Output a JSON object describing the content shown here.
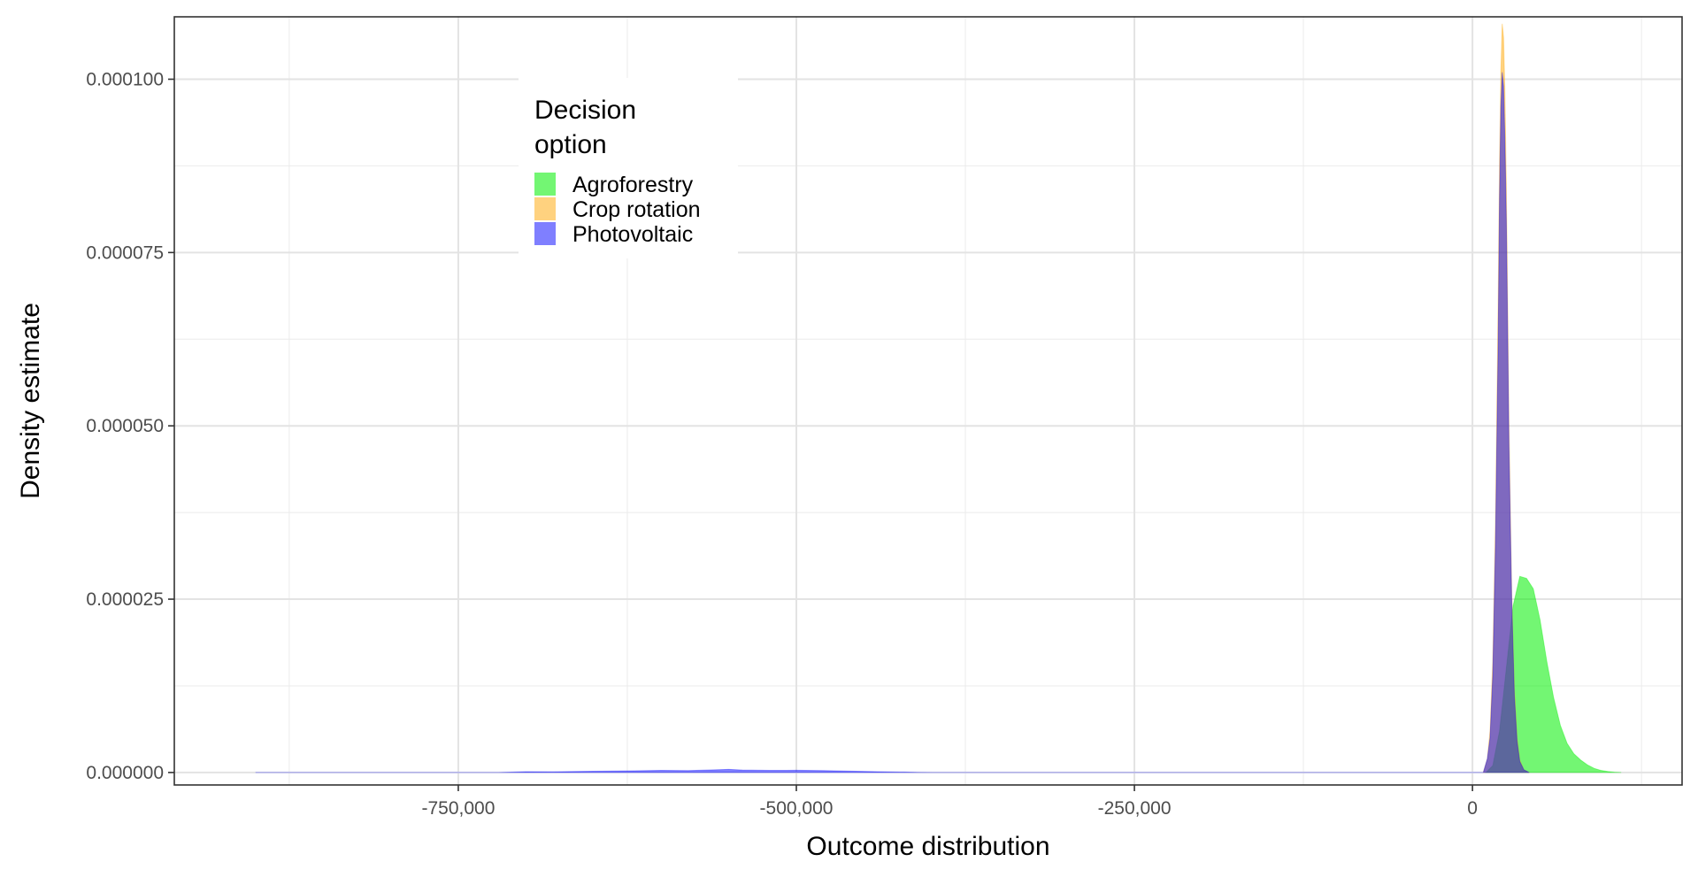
{
  "chart_data": {
    "type": "area",
    "title": "",
    "xlabel": "Outcome distribution",
    "ylabel": "Density estimate",
    "xlim": [
      -960000,
      155000
    ],
    "ylim": [
      -1.8e-06,
      0.000109
    ],
    "x_ticks": [
      -750000,
      -500000,
      -250000,
      0
    ],
    "x_tick_labels": [
      "-750,000",
      "-500,000",
      "-250,000",
      "0"
    ],
    "y_ticks": [
      0,
      2.5e-05,
      5e-05,
      7.5e-05,
      0.0001
    ],
    "y_tick_labels": [
      "0.000000",
      "0.000025",
      "0.000050",
      "0.000075",
      "0.000100"
    ],
    "grid": true,
    "legend": {
      "title_lines": [
        "Decision",
        "option"
      ],
      "placement": "top-left inside",
      "items": [
        "Agroforestry",
        "Crop rotation",
        "Photovoltaic"
      ]
    },
    "series": [
      {
        "name": "Agroforestry",
        "color": "#00ee00",
        "opacity": 0.55,
        "x": [
          10000,
          15000,
          20000,
          25000,
          30000,
          35000,
          40000,
          45000,
          50000,
          55000,
          60000,
          65000,
          70000,
          75000,
          80000,
          85000,
          90000,
          95000,
          100000,
          105000,
          110000
        ],
        "y": [
          0,
          1e-06,
          6e-06,
          1.5e-05,
          2.4e-05,
          2.83e-05,
          2.8e-05,
          2.65e-05,
          2.2e-05,
          1.6e-05,
          1.08e-05,
          6.8e-06,
          4.2e-06,
          2.7e-06,
          1.8e-06,
          1.1e-06,
          6e-07,
          3e-07,
          1.5e-07,
          5e-08,
          0
        ]
      },
      {
        "name": "Crop rotation",
        "color": "#ffa500",
        "opacity": 0.5,
        "x": [
          8000,
          11000,
          13000,
          15000,
          17000,
          19000,
          20000,
          21000,
          22000,
          23000,
          24000,
          25000,
          26000,
          27000,
          29000,
          31000,
          33000,
          35000,
          38000,
          42000
        ],
        "y": [
          0,
          2e-06,
          6e-06,
          1.6e-05,
          3.6e-05,
          6.8e-05,
          8.8e-05,
          0.000101,
          0.000108,
          0.000106,
          9.8e-05,
          8.5e-05,
          6.8e-05,
          5e-05,
          2.6e-05,
          1.2e-05,
          5e-06,
          1.8e-06,
          4e-07,
          0
        ]
      },
      {
        "name": "Photovoltaic",
        "color": "#0000ff",
        "opacity": 0.5,
        "x": [
          -900000,
          -720000,
          -700000,
          -680000,
          -650000,
          -620000,
          -600000,
          -580000,
          -560000,
          -550000,
          -540000,
          -520000,
          -500000,
          -480000,
          -460000,
          -440000,
          -420000,
          -410000,
          -400000,
          8000,
          11000,
          13000,
          15000,
          17000,
          19000,
          20000,
          21000,
          22000,
          23000,
          24000,
          25000,
          26000,
          27000,
          29000,
          31000,
          33000,
          35000,
          38000,
          42000
        ],
        "y": [
          0,
          0,
          1.2e-07,
          1e-07,
          1.8e-07,
          2.5e-07,
          3e-07,
          2.8e-07,
          3.8e-07,
          4.5e-07,
          3.5e-07,
          3e-07,
          3.2e-07,
          2.8e-07,
          2e-07,
          1.2e-07,
          6e-08,
          2e-08,
          0,
          0,
          2e-06,
          5e-06,
          1.4e-05,
          3.3e-05,
          6.2e-05,
          8.3e-05,
          9.6e-05,
          0.000101,
          9.9e-05,
          9.1e-05,
          8e-05,
          6.4e-05,
          4.7e-05,
          2.5e-05,
          1.1e-05,
          4.5e-06,
          1.6e-06,
          4e-07,
          0
        ]
      }
    ]
  }
}
